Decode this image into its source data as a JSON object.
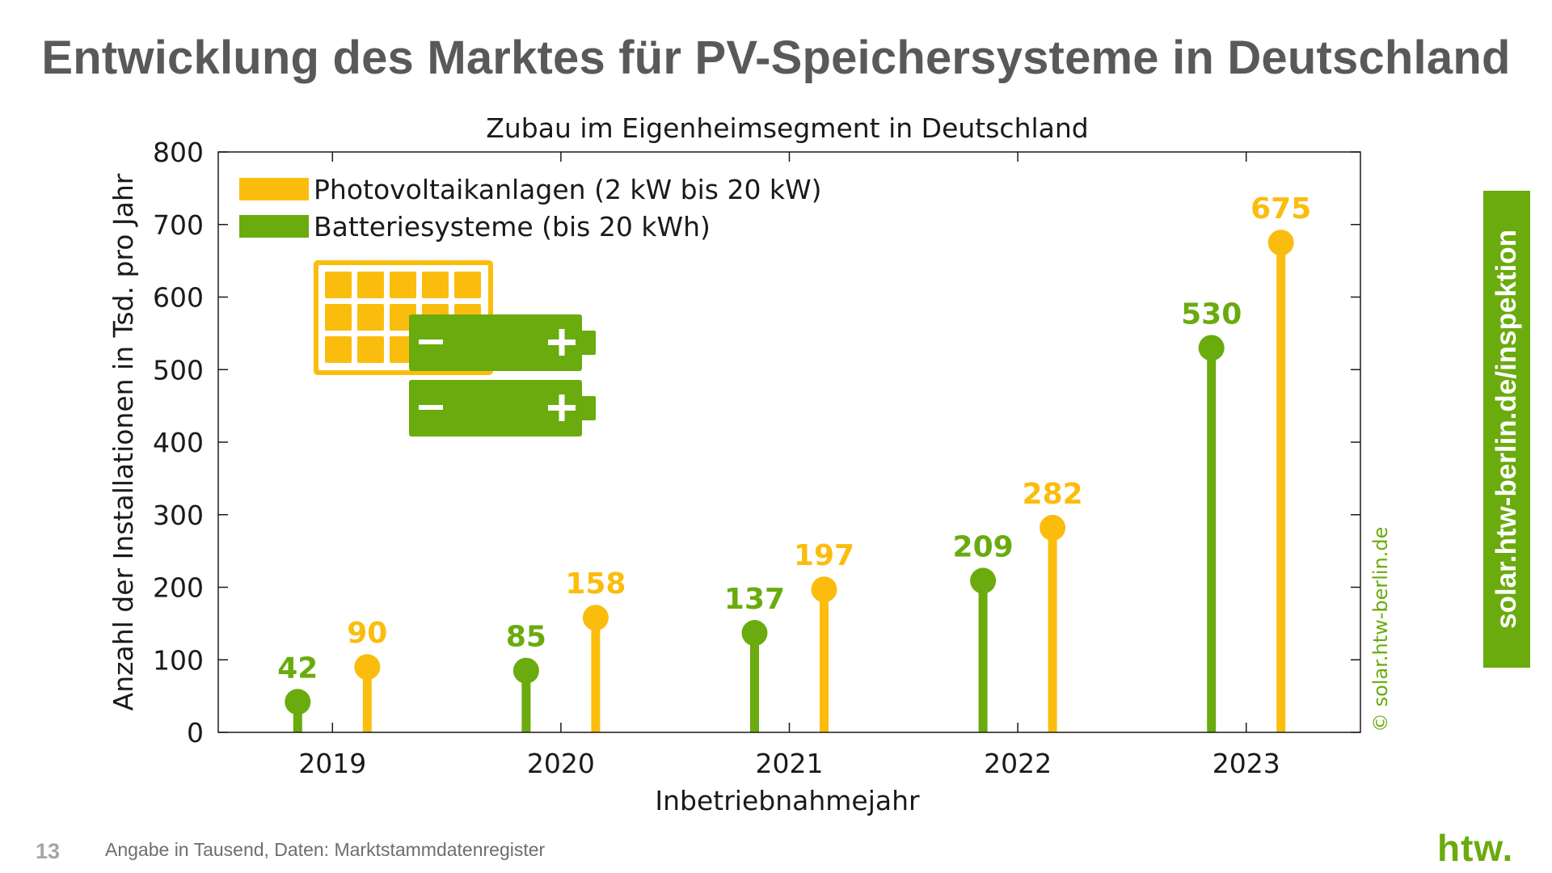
{
  "page": {
    "title": "Entwicklung des Marktes für PV-Speichersysteme in Deutschland",
    "page_number": "13",
    "source_note": "Angabe in Tausend, Daten: Marktstammdatenregister",
    "side_banner": "solar.htw-berlin.de/inspektion",
    "logo_text": "htw.",
    "watermark": "© solar.htw-berlin.de"
  },
  "colors": {
    "pv": "#fbbd0d",
    "battery": "#6aab0e",
    "text": "#1a1a1a",
    "title": "#58595b"
  },
  "chart_data": {
    "type": "bar",
    "title": "Zubau im Eigenheimsegment in Deutschland",
    "xlabel": "Inbetriebnahmejahr",
    "ylabel": "Anzahl der Installationen in Tsd. pro Jahr",
    "ylim": [
      0,
      800
    ],
    "yticks": [
      "0",
      "100",
      "200",
      "300",
      "400",
      "500",
      "600",
      "700",
      "800"
    ],
    "categories": [
      "2019",
      "2020",
      "2021",
      "2022",
      "2023"
    ],
    "legend_position": "top-left",
    "series": [
      {
        "name": "Batteriesysteme (bis 20 kWh)",
        "color": "#6aab0e",
        "values": [
          42,
          85,
          137,
          209,
          530
        ]
      },
      {
        "name": "Photovoltaikanlagen (2 kW bis 20 kW)",
        "color": "#fbbd0d",
        "values": [
          90,
          158,
          197,
          282,
          675
        ]
      }
    ],
    "legend_order": [
      1,
      0
    ]
  }
}
